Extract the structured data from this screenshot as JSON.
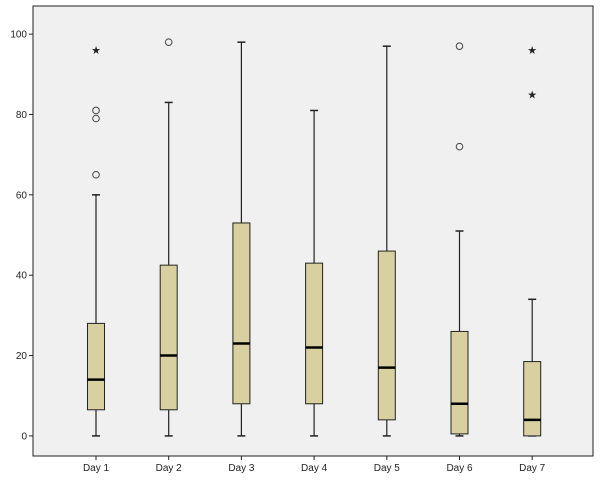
{
  "chart_data": {
    "type": "boxplot",
    "title": "",
    "xlabel": "",
    "ylabel": "",
    "ylim": [
      -5,
      107
    ],
    "yticks": [
      0,
      20,
      40,
      60,
      80,
      100
    ],
    "ytick_labels": [
      "0",
      "20",
      "40",
      "60",
      "80",
      "100"
    ],
    "grid": false,
    "colors": {
      "box_fill": "#d8d0a0",
      "box_stroke": "#222222",
      "plot_bg": "#f0f0f0",
      "frame": "#222222"
    },
    "categories": [
      "Day 1",
      "Day 2",
      "Day 3",
      "Day 4",
      "Day 5",
      "Day 6",
      "Day 7"
    ],
    "boxes": [
      {
        "min": 0,
        "q1": 6.5,
        "median": 14,
        "q3": 28,
        "max": 60,
        "outliers": [
          65,
          79,
          81
        ],
        "extremes": [
          96
        ]
      },
      {
        "min": 0,
        "q1": 6.5,
        "median": 20,
        "q3": 42.5,
        "max": 83,
        "outliers": [
          98
        ],
        "extremes": []
      },
      {
        "min": 0,
        "q1": 8,
        "median": 23,
        "q3": 53,
        "max": 98,
        "outliers": [],
        "extremes": []
      },
      {
        "min": 0,
        "q1": 8,
        "median": 22,
        "q3": 43,
        "max": 81,
        "outliers": [],
        "extremes": []
      },
      {
        "min": 0,
        "q1": 4,
        "median": 17,
        "q3": 46,
        "max": 97,
        "outliers": [],
        "extremes": []
      },
      {
        "min": 0,
        "q1": 0.5,
        "median": 8,
        "q3": 26,
        "max": 51,
        "outliers": [
          72,
          97
        ],
        "extremes": []
      },
      {
        "min": 0,
        "q1": 0,
        "median": 4,
        "q3": 18.5,
        "max": 34,
        "outliers": [],
        "extremes": [
          85,
          96
        ]
      }
    ]
  }
}
